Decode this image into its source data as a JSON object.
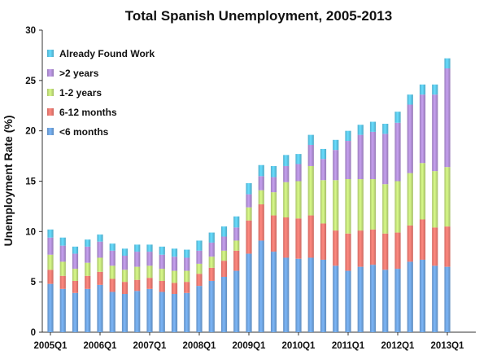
{
  "chart_data": {
    "type": "bar",
    "stacked": true,
    "title": "Total Spanish Unemployment, 2005-2013",
    "xlabel": "",
    "ylabel": "Unemployment Rate (%)",
    "ylim": [
      0,
      30
    ],
    "yticks": [
      0,
      5,
      10,
      15,
      20,
      25,
      30
    ],
    "grid": false,
    "legend_position": "top-left",
    "categories": [
      "2005Q1",
      "2005Q2",
      "2005Q3",
      "2005Q4",
      "2006Q1",
      "2006Q2",
      "2006Q3",
      "2006Q4",
      "2007Q1",
      "2007Q2",
      "2007Q3",
      "2007Q4",
      "2008Q1",
      "2008Q2",
      "2008Q3",
      "2008Q4",
      "2009Q1",
      "2009Q2",
      "2009Q3",
      "2009Q4",
      "2010Q1",
      "2010Q2",
      "2010Q3",
      "2010Q4",
      "2011Q1",
      "2011Q2",
      "2011Q3",
      "2011Q4",
      "2012Q1",
      "2012Q2",
      "2012Q3",
      "2012Q4",
      "2013Q1"
    ],
    "xtick_labels": [
      "2005Q1",
      "2006Q1",
      "2007Q1",
      "2008Q1",
      "2009Q1",
      "2010Q1",
      "2011Q1",
      "2012Q1",
      "2013Q1"
    ],
    "series": [
      {
        "name": "<6 months",
        "color": "#6fa3de",
        "values": [
          4.8,
          4.3,
          3.9,
          4.3,
          4.7,
          4.0,
          3.8,
          4.1,
          4.3,
          4.0,
          3.8,
          3.9,
          4.6,
          5.1,
          5.5,
          6.1,
          7.8,
          9.1,
          8.0,
          7.4,
          7.3,
          7.4,
          7.2,
          6.6,
          6.1,
          6.5,
          6.7,
          6.2,
          6.3,
          7.0,
          7.2,
          6.6,
          6.5
        ]
      },
      {
        "name": "6-12 months",
        "color": "#f07a72",
        "values": [
          1.4,
          1.3,
          1.2,
          1.3,
          1.3,
          1.3,
          1.2,
          1.1,
          1.1,
          1.1,
          1.1,
          1.1,
          1.2,
          1.3,
          1.6,
          2.0,
          3.3,
          3.6,
          3.6,
          4.0,
          4.0,
          4.2,
          3.6,
          3.5,
          3.7,
          3.6,
          3.5,
          3.6,
          3.6,
          3.6,
          4.0,
          3.8,
          4.0
        ]
      },
      {
        "name": "1-2 years",
        "color": "#c2e07a",
        "values": [
          1.5,
          1.4,
          1.2,
          1.3,
          1.4,
          1.3,
          1.2,
          1.3,
          1.2,
          1.2,
          1.2,
          1.1,
          1.0,
          1.1,
          1.0,
          1.0,
          1.3,
          1.4,
          2.3,
          3.5,
          3.7,
          4.9,
          4.3,
          5.0,
          5.4,
          5.1,
          5.0,
          4.9,
          5.1,
          5.2,
          5.6,
          5.6,
          5.9
        ]
      },
      {
        "name": ">2 years",
        "color": "#b18fd6",
        "values": [
          1.7,
          1.6,
          1.5,
          1.6,
          1.6,
          1.5,
          1.4,
          1.5,
          1.4,
          1.4,
          1.4,
          1.3,
          1.3,
          1.4,
          1.4,
          1.3,
          1.3,
          1.4,
          1.5,
          1.6,
          1.7,
          2.1,
          2.1,
          3.0,
          3.8,
          4.4,
          4.7,
          5.0,
          5.8,
          6.8,
          6.8,
          7.6,
          9.8
        ]
      },
      {
        "name": "Already Found Work",
        "color": "#5cc6e8",
        "values": [
          0.8,
          0.8,
          0.7,
          0.7,
          0.7,
          0.7,
          0.7,
          0.7,
          0.7,
          0.8,
          0.8,
          0.8,
          1.0,
          1.0,
          1.0,
          1.1,
          1.1,
          1.1,
          1.1,
          1.1,
          1.0,
          1.0,
          1.0,
          1.0,
          1.0,
          1.0,
          1.0,
          1.0,
          1.1,
          1.0,
          1.0,
          1.0,
          1.0
        ]
      }
    ],
    "legend_order": [
      "Already Found Work",
      ">2 years",
      "1-2 years",
      "6-12 months",
      "<6 months"
    ]
  }
}
